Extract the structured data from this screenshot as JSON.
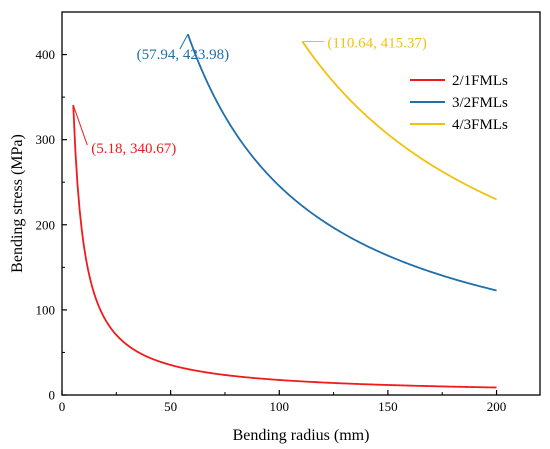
{
  "chart_data": {
    "type": "line",
    "xlabel": "Bending radius (mm)",
    "ylabel": "Bending stress (MPa)",
    "xlim": [
      0,
      220
    ],
    "ylim": [
      0,
      450
    ],
    "xticks": [
      0,
      50,
      100,
      150,
      200
    ],
    "yticks": [
      0,
      100,
      200,
      300,
      400
    ],
    "grid": false,
    "legend_position": "top-right",
    "series": [
      {
        "name": "2/1FMLs",
        "color": "#ee1c1c",
        "k": 1764.7,
        "x_start": 5.18,
        "x_end": 200,
        "annotation": {
          "text": "(5.18, 340.67)",
          "x": 5.18,
          "y": 340.67
        }
      },
      {
        "name": "3/2FMLs",
        "color": "#1f6fa8",
        "k": 24565.4,
        "x_start": 57.94,
        "x_end": 200,
        "annotation": {
          "text": "(57.94, 423.98)",
          "x": 57.94,
          "y": 423.98
        }
      },
      {
        "name": "4/3FMLs",
        "color": "#f2c10f",
        "k": 45956.7,
        "x_start": 110.64,
        "x_end": 200,
        "annotation": {
          "text": "(110.64, 415.37)",
          "x": 110.64,
          "y": 415.37
        }
      }
    ]
  }
}
